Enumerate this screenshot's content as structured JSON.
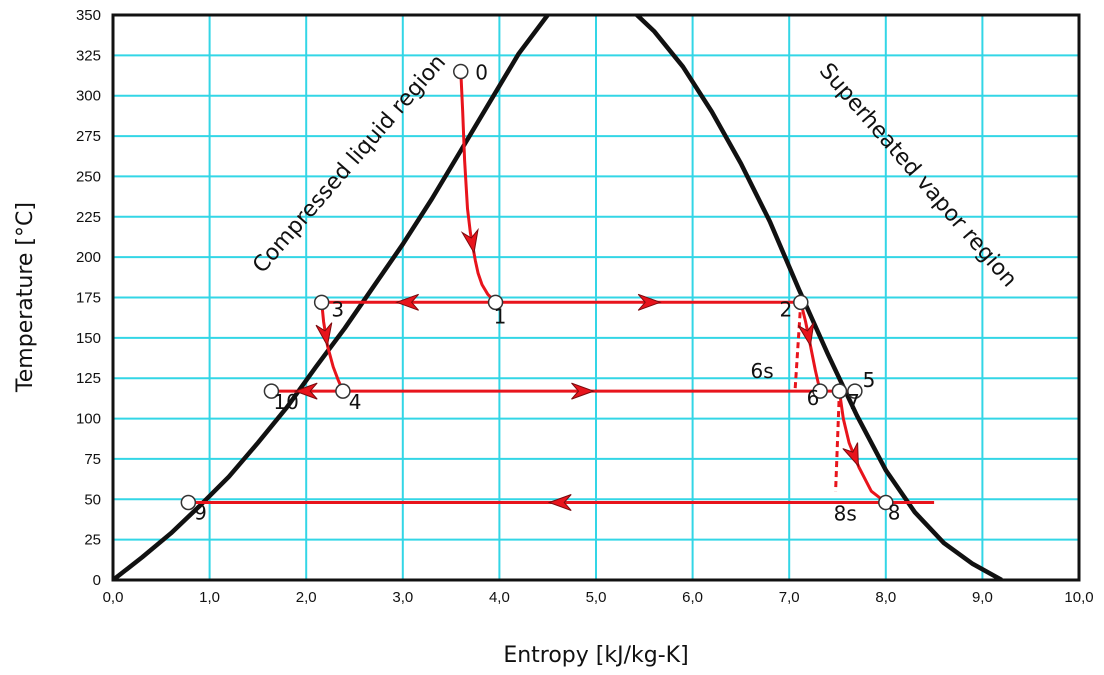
{
  "chart_data": {
    "type": "line",
    "title": "",
    "xlabel": "Entropy [kJ/kg-K]",
    "ylabel": "Temperature  [°C]",
    "xlim": [
      0,
      10
    ],
    "ylim": [
      0,
      350
    ],
    "xticks": [
      0,
      1,
      2,
      3,
      4,
      5,
      6,
      7,
      8,
      9,
      10
    ],
    "xtick_labels": [
      "0,0",
      "1,0",
      "2,0",
      "3,0",
      "4,0",
      "5,0",
      "6,0",
      "7,0",
      "8,0",
      "9,0",
      "10,0"
    ],
    "yticks": [
      0,
      25,
      50,
      75,
      100,
      125,
      150,
      175,
      200,
      225,
      250,
      275,
      300,
      325,
      350
    ],
    "ytick_labels": [
      "0",
      "25",
      "50",
      "75",
      "100",
      "125",
      "150",
      "175",
      "200",
      "225",
      "250",
      "275",
      "300",
      "325",
      "350"
    ],
    "grid": true,
    "colors": {
      "grid": "#33d6e6",
      "dome": "#111111",
      "process": "#e8141c",
      "axis": "#111111"
    },
    "dome": {
      "x": [
        0.0,
        0.3,
        0.6,
        0.9,
        1.2,
        1.5,
        1.8,
        2.1,
        2.4,
        2.7,
        3.0,
        3.3,
        3.6,
        3.9,
        4.2,
        4.5,
        4.7,
        5.0,
        5.3,
        5.6,
        5.9,
        6.2,
        6.5,
        6.8,
        7.1,
        7.4,
        7.7,
        8.0,
        8.3,
        8.6,
        8.9,
        9.2
      ],
      "y": [
        0,
        14,
        29,
        46,
        64,
        85,
        107,
        132,
        156,
        182,
        208,
        236,
        266,
        296,
        326,
        350,
        362,
        365,
        357,
        340,
        318,
        290,
        258,
        222,
        180,
        140,
        102,
        68,
        42,
        23,
        10,
        0
      ]
    },
    "series": [
      {
        "x": [
          3.6,
          3.62,
          3.64,
          3.67,
          3.7,
          3.73,
          3.75,
          3.78,
          3.82,
          3.88,
          3.96
        ],
        "y": [
          315,
          290,
          260,
          230,
          215,
          205,
          198,
          190,
          183,
          177,
          172
        ],
        "arrows": [
          4
        ]
      },
      {
        "x": [
          3.96,
          2.16
        ],
        "y": [
          172,
          172
        ],
        "arrows": [
          0
        ]
      },
      {
        "x": [
          3.96,
          7.12
        ],
        "y": [
          172,
          172
        ],
        "arrows": [
          0
        ]
      },
      {
        "x": [
          2.16,
          2.18,
          2.22,
          2.28,
          2.33,
          2.38
        ],
        "y": [
          172,
          160,
          145,
          132,
          124,
          117
        ],
        "arrows": [
          1
        ]
      },
      {
        "x": [
          2.38,
          1.64
        ],
        "y": [
          117,
          117
        ],
        "arrows": [
          0
        ]
      },
      {
        "x": [
          2.38,
          7.32
        ],
        "y": [
          117,
          117
        ],
        "arrows": [
          0
        ]
      },
      {
        "x": [
          7.12,
          7.17,
          7.22,
          7.27,
          7.32
        ],
        "y": [
          172,
          160,
          145,
          130,
          117
        ],
        "arrows": [
          1
        ]
      },
      {
        "x": [
          7.32,
          7.68
        ],
        "y": [
          117,
          117
        ],
        "arrows": []
      },
      {
        "x": [
          7.52,
          7.56,
          7.62,
          7.72,
          7.85,
          8.0
        ],
        "y": [
          117,
          100,
          85,
          70,
          55,
          48
        ],
        "arrows": [
          2
        ]
      },
      {
        "x": [
          8.5,
          0.78
        ],
        "y": [
          48,
          48
        ],
        "arrows": [
          0
        ]
      }
    ],
    "dashed": [
      {
        "x": [
          7.12,
          7.06
        ],
        "y": [
          172,
          117
        ]
      },
      {
        "x": [
          7.52,
          7.48
        ],
        "y": [
          117,
          55
        ]
      }
    ],
    "points": [
      {
        "label": "0",
        "x": 3.6,
        "y": 315,
        "lx": 0.15,
        "ly": -8
      },
      {
        "label": "1",
        "x": 3.96,
        "y": 172,
        "lx": -0.02,
        "ly": -21
      },
      {
        "label": "2",
        "x": 7.12,
        "y": 172,
        "lx": -0.22,
        "ly": -14
      },
      {
        "label": "3",
        "x": 2.16,
        "y": 172,
        "lx": 0.1,
        "ly": -14
      },
      {
        "label": "4",
        "x": 2.38,
        "y": 117,
        "lx": 0.06,
        "ly": -18
      },
      {
        "label": "5",
        "x": 7.68,
        "y": 117,
        "lx": 0.08,
        "ly": 4
      },
      {
        "label": "6",
        "x": 7.32,
        "y": 117,
        "lx": -0.14,
        "ly": -14
      },
      {
        "label": "7",
        "x": 7.52,
        "y": 117,
        "lx": 0.08,
        "ly": -18
      },
      {
        "label": "8",
        "x": 8.0,
        "y": 48,
        "lx": 0.02,
        "ly": -17
      },
      {
        "label": "9",
        "x": 0.78,
        "y": 48,
        "lx": 0.06,
        "ly": -17
      },
      {
        "label": "10",
        "x": 1.64,
        "y": 117,
        "lx": 0.02,
        "ly": -18
      }
    ],
    "annotations": [
      {
        "text": "6s",
        "x": 6.6,
        "y": 125
      },
      {
        "text": "8s",
        "x": 7.46,
        "y": 37
      }
    ],
    "regions": [
      {
        "text": "Compressed liquid region",
        "x": 2.5,
        "y": 255,
        "angle": -49
      },
      {
        "text": "Superheated vapor region",
        "x": 8.28,
        "y": 248,
        "angle": 49
      }
    ]
  }
}
